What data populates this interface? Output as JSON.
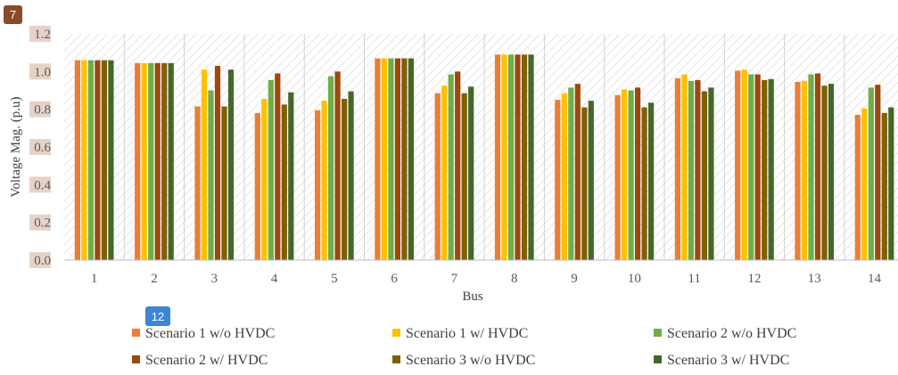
{
  "chart_data": {
    "type": "bar",
    "title": "",
    "xlabel": "Bus",
    "ylabel": "Voltage Mag. (p.u)",
    "ylim": [
      0,
      1.2
    ],
    "yticks": [
      "0.0",
      "0.2",
      "0.4",
      "0.6",
      "0.8",
      "1.0",
      "1.2"
    ],
    "grid": false,
    "legend_position": "bottom",
    "categories": [
      "1",
      "2",
      "3",
      "4",
      "5",
      "6",
      "7",
      "8",
      "9",
      "10",
      "11",
      "12",
      "13",
      "14"
    ],
    "series": [
      {
        "name": "Scenario 1 w/o HVDC",
        "color": "#ed7d31",
        "values": [
          1.06,
          1.045,
          0.815,
          0.78,
          0.795,
          1.07,
          0.885,
          1.09,
          0.85,
          0.875,
          0.965,
          1.005,
          0.945,
          0.77
        ]
      },
      {
        "name": "Scenario 1 w/ HVDC",
        "color": "#ffc000",
        "values": [
          1.06,
          1.045,
          1.01,
          0.855,
          0.845,
          1.07,
          0.925,
          1.09,
          0.885,
          0.905,
          0.985,
          1.01,
          0.95,
          0.805
        ]
      },
      {
        "name": "Scenario 2 w/o HVDC",
        "color": "#70ad47",
        "values": [
          1.06,
          1.045,
          0.9,
          0.955,
          0.975,
          1.07,
          0.985,
          1.09,
          0.915,
          0.9,
          0.95,
          0.985,
          0.985,
          0.915
        ]
      },
      {
        "name": "Scenario 2 w/ HVDC",
        "color": "#9e480e",
        "values": [
          1.06,
          1.045,
          1.03,
          0.99,
          1.0,
          1.07,
          1.0,
          1.09,
          0.935,
          0.915,
          0.955,
          0.985,
          0.99,
          0.93
        ]
      },
      {
        "name": "Scenario 3 w/o HVDC",
        "color": "#806000",
        "values": [
          1.06,
          1.045,
          0.815,
          0.825,
          0.855,
          1.07,
          0.885,
          1.09,
          0.81,
          0.81,
          0.895,
          0.955,
          0.925,
          0.78
        ]
      },
      {
        "name": "Scenario 3 w/ HVDC",
        "color": "#43682b",
        "values": [
          1.06,
          1.045,
          1.01,
          0.89,
          0.895,
          1.07,
          0.92,
          1.09,
          0.845,
          0.835,
          0.915,
          0.96,
          0.935,
          0.81
        ]
      }
    ]
  },
  "overlays": {
    "badge_top": "7",
    "badge_legend": "12",
    "colors": {
      "badge_top": "#8b4a2b",
      "badge_legend": "#3a86d8"
    }
  },
  "colors": {
    "plot_hatch": "#d9d9d9",
    "separator": "#d0d0d0",
    "axis": "#bfbfbf"
  }
}
